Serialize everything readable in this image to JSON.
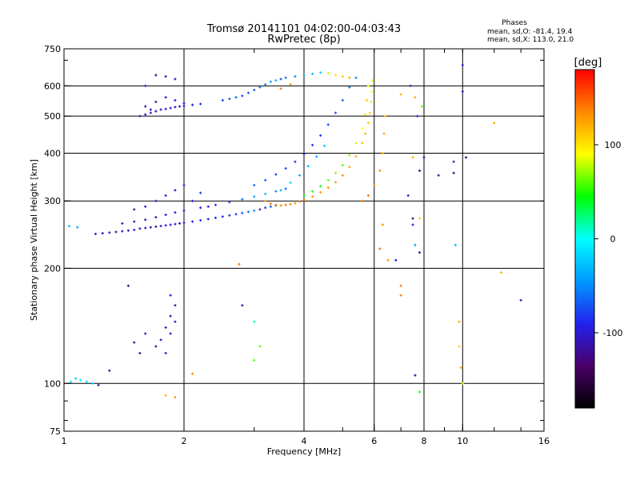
{
  "chart_data": {
    "type": "scatter",
    "title": "Tromsø 20141101 04:02:00-04:03:43",
    "subtitle": "RwPretec (8p)",
    "xlabel": "Frequency [MHz]",
    "ylabel": "Stationary phase Virtual Height [km]",
    "x_scale": "log",
    "y_scale": "log",
    "xlim": [
      1,
      16
    ],
    "ylim": [
      75,
      750
    ],
    "x_ticks": [
      1,
      2,
      4,
      6,
      8,
      10,
      16
    ],
    "x_tick_labels": [
      "1",
      "2",
      "4",
      "6",
      "8",
      "10",
      "16"
    ],
    "y_ticks": [
      75,
      100,
      200,
      300,
      400,
      500,
      600,
      750
    ],
    "y_tick_labels": [
      "75",
      "100",
      "200",
      "300",
      "400",
      "500",
      "600",
      "750"
    ],
    "vertical_grid": [
      2,
      4,
      6,
      8,
      10
    ],
    "horizontal_grid": [
      100,
      200,
      300,
      400,
      500,
      600
    ],
    "grid": true,
    "stats": {
      "header": "Phases",
      "line_o": "mean, sd,O: -81.4, 19.4",
      "line_x": "mean, sd,X: 113.0, 21.0"
    },
    "colorbar": {
      "label": "[deg]",
      "range": [
        -180,
        180
      ],
      "ticks": [
        100,
        0,
        -100
      ],
      "tick_labels": [
        "100",
        "0",
        "-100"
      ],
      "colors": [
        "#000000",
        "#4a006a",
        "#2222ee",
        "#0099ff",
        "#00ffff",
        "#00ff00",
        "#ffff00",
        "#ff8800",
        "#ff0000"
      ]
    },
    "series": [
      {
        "color_phase_note": "",
        "points": [
          [
            1.04,
            101,
            -10
          ],
          [
            1.07,
            103,
            -20
          ],
          [
            1.1,
            102,
            -5
          ],
          [
            1.14,
            101,
            -15
          ],
          [
            1.18,
            100,
            -25
          ],
          [
            1.22,
            99,
            -120
          ],
          [
            1.03,
            258,
            -30
          ],
          [
            1.08,
            256,
            -40
          ],
          [
            1.2,
            246,
            -100
          ],
          [
            1.25,
            247,
            -110
          ],
          [
            1.3,
            248,
            -105
          ],
          [
            1.35,
            249,
            -115
          ],
          [
            1.4,
            250,
            -100
          ],
          [
            1.45,
            251,
            -110
          ],
          [
            1.5,
            252,
            -95
          ],
          [
            1.55,
            254,
            -105
          ],
          [
            1.6,
            255,
            -100
          ],
          [
            1.65,
            256,
            -110
          ],
          [
            1.7,
            257,
            -120
          ],
          [
            1.75,
            258,
            -100
          ],
          [
            1.8,
            259,
            -95
          ],
          [
            1.85,
            260,
            -105
          ],
          [
            1.9,
            261,
            -100
          ],
          [
            1.95,
            262,
            -110
          ],
          [
            2.0,
            263,
            -100
          ],
          [
            2.1,
            265,
            -95
          ],
          [
            2.2,
            267,
            -90
          ],
          [
            2.3,
            269,
            -100
          ],
          [
            2.4,
            271,
            -95
          ],
          [
            2.5,
            273,
            -90
          ],
          [
            2.6,
            275,
            -85
          ],
          [
            2.7,
            277,
            -80
          ],
          [
            2.8,
            279,
            -70
          ],
          [
            2.9,
            281,
            -60
          ],
          [
            3.0,
            283,
            -50
          ],
          [
            3.1,
            285,
            -90
          ],
          [
            3.2,
            288,
            -80
          ],
          [
            3.3,
            290,
            -70
          ],
          [
            3.4,
            292,
            -60
          ],
          [
            1.4,
            262,
            -110
          ],
          [
            1.5,
            265,
            -100
          ],
          [
            1.6,
            268,
            -105
          ],
          [
            1.7,
            272,
            -110
          ],
          [
            1.8,
            276,
            -100
          ],
          [
            1.9,
            280,
            -95
          ],
          [
            2.0,
            283,
            -100
          ],
          [
            2.2,
            288,
            -90
          ],
          [
            2.4,
            293,
            -85
          ],
          [
            2.6,
            298,
            -80
          ],
          [
            2.8,
            303,
            -60
          ],
          [
            3.0,
            308,
            -40
          ],
          [
            3.2,
            313,
            -30
          ],
          [
            3.4,
            318,
            -50
          ],
          [
            3.6,
            323,
            -60
          ],
          [
            1.5,
            285,
            -110
          ],
          [
            1.6,
            290,
            -105
          ],
          [
            1.7,
            300,
            -100
          ],
          [
            1.8,
            310,
            -95
          ],
          [
            1.9,
            320,
            -100
          ],
          [
            2.0,
            330,
            -90
          ],
          [
            2.1,
            300,
            -95
          ],
          [
            2.2,
            315,
            -80
          ],
          [
            2.3,
            290,
            -100
          ],
          [
            3.2,
            300,
            130
          ],
          [
            3.3,
            295,
            140
          ],
          [
            3.4,
            293,
            135
          ],
          [
            3.5,
            292,
            130
          ],
          [
            3.6,
            293,
            140
          ],
          [
            3.7,
            294,
            135
          ],
          [
            3.8,
            296,
            130
          ],
          [
            3.9,
            299,
            140
          ],
          [
            4.0,
            302,
            135
          ],
          [
            4.2,
            308,
            130
          ],
          [
            4.4,
            316,
            125
          ],
          [
            4.6,
            325,
            130
          ],
          [
            4.8,
            336,
            125
          ],
          [
            5.0,
            350,
            130
          ],
          [
            5.2,
            368,
            125
          ],
          [
            5.4,
            392,
            120
          ],
          [
            5.6,
            425,
            115
          ],
          [
            5.7,
            450,
            120
          ],
          [
            5.8,
            480,
            110
          ],
          [
            5.85,
            510,
            105
          ],
          [
            5.9,
            545,
            100
          ],
          [
            5.92,
            580,
            90
          ],
          [
            5.95,
            620,
            80
          ],
          [
            4.0,
            310,
            40
          ],
          [
            4.2,
            318,
            50
          ],
          [
            4.4,
            328,
            40
          ],
          [
            4.6,
            340,
            60
          ],
          [
            4.8,
            355,
            70
          ],
          [
            5.0,
            372,
            60
          ],
          [
            5.2,
            395,
            70
          ],
          [
            5.4,
            425,
            80
          ],
          [
            5.6,
            465,
            90
          ],
          [
            5.7,
            505,
            100
          ],
          [
            5.75,
            550,
            110
          ],
          [
            5.8,
            600,
            90
          ],
          [
            5.6,
            300,
            140
          ],
          [
            5.8,
            310,
            140
          ],
          [
            6.0,
            330,
            135
          ],
          [
            6.2,
            360,
            130
          ],
          [
            6.3,
            400,
            125
          ],
          [
            6.35,
            450,
            120
          ],
          [
            6.4,
            500,
            115
          ],
          [
            3.0,
            330,
            -60
          ],
          [
            3.2,
            340,
            -70
          ],
          [
            3.4,
            352,
            -80
          ],
          [
            3.6,
            365,
            -75
          ],
          [
            3.8,
            380,
            -85
          ],
          [
            4.0,
            398,
            -90
          ],
          [
            4.2,
            420,
            -85
          ],
          [
            4.4,
            445,
            -80
          ],
          [
            4.6,
            475,
            -75
          ],
          [
            4.8,
            510,
            -70
          ],
          [
            5.0,
            550,
            -65
          ],
          [
            5.2,
            595,
            -60
          ],
          [
            5.4,
            630,
            -50
          ],
          [
            3.5,
            320,
            -30
          ],
          [
            3.7,
            335,
            -20
          ],
          [
            3.9,
            350,
            -40
          ],
          [
            4.1,
            370,
            -30
          ],
          [
            4.3,
            392,
            -35
          ],
          [
            4.5,
            418,
            -25
          ],
          [
            1.55,
            500,
            -110
          ],
          [
            1.6,
            505,
            -100
          ],
          [
            1.65,
            510,
            -105
          ],
          [
            1.7,
            515,
            -110
          ],
          [
            1.75,
            520,
            -100
          ],
          [
            1.8,
            522,
            -95
          ],
          [
            1.85,
            525,
            -100
          ],
          [
            1.9,
            528,
            -105
          ],
          [
            1.95,
            530,
            -100
          ],
          [
            2.0,
            532,
            -95
          ],
          [
            2.1,
            535,
            -90
          ],
          [
            2.2,
            538,
            -85
          ],
          [
            1.6,
            530,
            -115
          ],
          [
            1.7,
            545,
            -110
          ],
          [
            1.8,
            560,
            -100
          ],
          [
            1.9,
            550,
            -95
          ],
          [
            2.0,
            540,
            -90
          ],
          [
            1.65,
            520,
            -100
          ],
          [
            2.5,
            550,
            -80
          ],
          [
            2.6,
            555,
            -70
          ],
          [
            2.7,
            560,
            -60
          ],
          [
            2.8,
            565,
            -75
          ],
          [
            2.9,
            575,
            -70
          ],
          [
            3.0,
            585,
            -65
          ],
          [
            3.1,
            595,
            -60
          ],
          [
            3.2,
            605,
            -55
          ],
          [
            3.3,
            615,
            -40
          ],
          [
            3.4,
            620,
            -30
          ],
          [
            3.5,
            625,
            -70
          ],
          [
            3.6,
            630,
            -60
          ],
          [
            3.8,
            635,
            -50
          ],
          [
            4.0,
            640,
            -40
          ],
          [
            4.2,
            645,
            -30
          ],
          [
            4.4,
            650,
            -20
          ],
          [
            4.6,
            648,
            80
          ],
          [
            4.8,
            640,
            100
          ],
          [
            5.0,
            635,
            110
          ],
          [
            5.2,
            630,
            120
          ],
          [
            3.5,
            590,
            140
          ],
          [
            3.7,
            605,
            130
          ],
          [
            1.7,
            640,
            -120
          ],
          [
            1.8,
            635,
            -110
          ],
          [
            1.9,
            625,
            -100
          ],
          [
            1.6,
            600,
            -100
          ],
          [
            1.9,
            160,
            -110
          ],
          [
            1.85,
            150,
            -120
          ],
          [
            1.8,
            140,
            -100
          ],
          [
            1.75,
            130,
            -110
          ],
          [
            1.7,
            125,
            -120
          ],
          [
            1.8,
            120,
            -100
          ],
          [
            1.85,
            135,
            -110
          ],
          [
            1.9,
            145,
            -105
          ],
          [
            1.6,
            135,
            -100
          ],
          [
            1.55,
            120,
            -110
          ],
          [
            1.5,
            128,
            -115
          ],
          [
            1.45,
            180,
            -120
          ],
          [
            1.85,
            170,
            -100
          ],
          [
            1.3,
            108,
            -120
          ],
          [
            1.8,
            93,
            120
          ],
          [
            1.9,
            92,
            130
          ],
          [
            2.1,
            106,
            130
          ],
          [
            2.8,
            160,
            -110
          ],
          [
            3.0,
            145,
            20
          ],
          [
            3.1,
            125,
            60
          ],
          [
            3.0,
            115,
            60
          ],
          [
            2.75,
            205,
            140
          ],
          [
            6.5,
            210,
            130
          ],
          [
            6.8,
            210,
            -110
          ],
          [
            6.3,
            260,
            130
          ],
          [
            6.2,
            225,
            140
          ],
          [
            7.0,
            180,
            140
          ],
          [
            7.0,
            170,
            140
          ],
          [
            7.3,
            310,
            -100
          ],
          [
            7.5,
            260,
            -90
          ],
          [
            7.6,
            230,
            -40
          ],
          [
            7.8,
            270,
            110
          ],
          [
            7.8,
            360,
            -120
          ],
          [
            7.5,
            390,
            120
          ],
          [
            7.7,
            500,
            -100
          ],
          [
            7.4,
            600,
            -110
          ],
          [
            7.0,
            570,
            120
          ],
          [
            7.6,
            560,
            120
          ],
          [
            7.9,
            530,
            60
          ],
          [
            8.0,
            390,
            -120
          ],
          [
            8.7,
            350,
            -110
          ],
          [
            9.5,
            380,
            -100
          ],
          [
            9.5,
            355,
            -120
          ],
          [
            9.6,
            230,
            -30
          ],
          [
            9.8,
            145,
            120
          ],
          [
            9.8,
            125,
            110
          ],
          [
            9.9,
            110,
            120
          ],
          [
            10.0,
            100,
            80
          ],
          [
            10.2,
            390,
            -120
          ],
          [
            10.0,
            680,
            -100
          ],
          [
            10.0,
            580,
            -110
          ],
          [
            7.6,
            105,
            -120
          ],
          [
            7.8,
            95,
            40
          ],
          [
            12.0,
            480,
            120
          ],
          [
            12.5,
            195,
            120
          ],
          [
            14.0,
            165,
            -100
          ],
          [
            7.8,
            220,
            -110
          ],
          [
            7.5,
            270,
            -120
          ]
        ]
      }
    ]
  }
}
